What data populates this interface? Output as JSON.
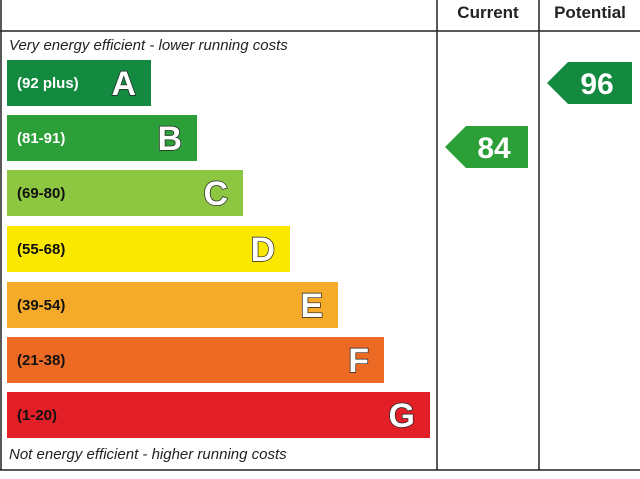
{
  "header": {
    "current": "Current",
    "potential": "Potential"
  },
  "top_note": "Very energy efficient - lower running costs",
  "bottom_note": "Not energy efficient - higher running costs",
  "bands": [
    {
      "range": "(92 plus)",
      "letter": "A",
      "color": "#138a3f"
    },
    {
      "range": "(81-91)",
      "letter": "B",
      "color": "#2c9f38"
    },
    {
      "range": "(69-80)",
      "letter": "C",
      "color": "#8dc641"
    },
    {
      "range": "(55-68)",
      "letter": "D",
      "color": "#fbe800"
    },
    {
      "range": "(39-54)",
      "letter": "E",
      "color": "#f5aa2a"
    },
    {
      "range": "(21-38)",
      "letter": "F",
      "color": "#ec6a24"
    },
    {
      "range": "(1-20)",
      "letter": "G",
      "color": "#e21e26"
    }
  ],
  "current": {
    "value": 84,
    "color": "#2c9f38"
  },
  "potential": {
    "value": 96,
    "color": "#138a3f"
  }
}
